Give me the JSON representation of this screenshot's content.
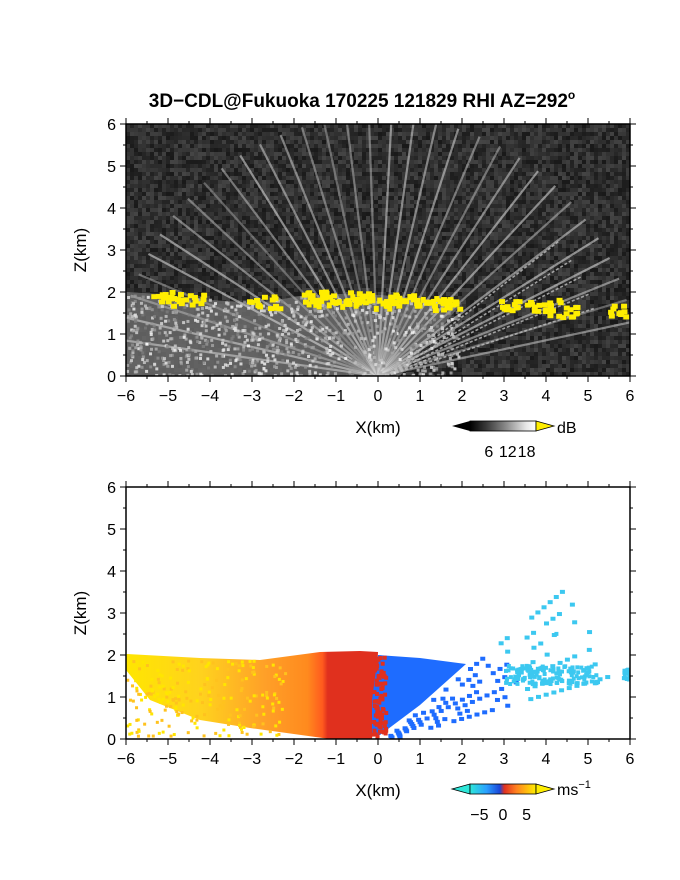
{
  "title_parts": {
    "main": "3D−CDL@Fukuoka 170225 121829 RHI AZ=292",
    "superscript": "o"
  },
  "colors": {
    "background": "#ffffff",
    "panel_dark_bg": "#2a2a2a",
    "highlight_yellow": "#ffee00",
    "velocity_neg": "#1e6cff",
    "velocity_pos": "#ff8a1e",
    "velocity_far_neg": "#3cc8f0"
  },
  "chart_data": [
    {
      "type": "heatmap",
      "name": "backscatter",
      "xlabel": "X(km)",
      "ylabel": "Z(km)",
      "xlim": [
        -6,
        6
      ],
      "ylim": [
        0,
        6
      ],
      "xticks": [
        "−6",
        "−5",
        "−4",
        "−3",
        "−2",
        "−1",
        "0",
        "1",
        "2",
        "3",
        "4",
        "5",
        "6"
      ],
      "yticks": [
        "0",
        "1",
        "2",
        "3",
        "4",
        "5",
        "6"
      ],
      "colorbar": {
        "unit": "dB",
        "ticks": [
          "6",
          "12",
          "18"
        ],
        "range": [
          0,
          21
        ]
      },
      "features": {
        "echo_top_km": [
          [
            -6,
            1.98
          ],
          [
            -5,
            1.92
          ],
          [
            -4,
            1.85
          ],
          [
            -3,
            1.8
          ],
          [
            -2,
            1.9
          ],
          [
            -1,
            1.9
          ],
          [
            0,
            1.85
          ],
          [
            1,
            1.8
          ],
          [
            1.9,
            1.72
          ]
        ],
        "yellow_cloud_base_km": [
          [
            -5.0,
            1.95
          ],
          [
            -4.6,
            1.85
          ],
          [
            -2.8,
            1.8
          ],
          [
            -1.5,
            1.95
          ],
          [
            -0.5,
            1.9
          ],
          [
            0.5,
            1.85
          ],
          [
            1.5,
            1.75
          ],
          [
            3.2,
            1.75
          ],
          [
            3.9,
            1.72
          ],
          [
            4.4,
            1.55
          ],
          [
            5.8,
            1.6
          ]
        ],
        "far_range_beams_km": [
          [
            2.0,
            4.0
          ],
          [
            2.0,
            1.85
          ]
        ]
      }
    },
    {
      "type": "heatmap",
      "name": "radial_velocity",
      "xlabel": "X(km)",
      "ylabel": "Z(km)",
      "xlim": [
        -6,
        6
      ],
      "ylim": [
        0,
        6
      ],
      "xticks": [
        "−6",
        "−5",
        "−4",
        "−3",
        "−2",
        "−1",
        "0",
        "1",
        "2",
        "3",
        "4",
        "5",
        "6"
      ],
      "yticks": [
        "0",
        "1",
        "2",
        "3",
        "4",
        "5",
        "6"
      ],
      "colorbar": {
        "unit": "ms",
        "unit_exponent": "−1",
        "ticks": [
          "−5",
          "0",
          "5"
        ],
        "range": [
          -7,
          7
        ]
      },
      "features": {
        "negative_region_x_km": [
          0,
          2.1
        ],
        "positive_region_x_km": [
          -6,
          0
        ],
        "far_negative_x_km": [
          2.5,
          6
        ],
        "isolated_point_km": [
          4.2,
          2.55
        ]
      }
    }
  ]
}
